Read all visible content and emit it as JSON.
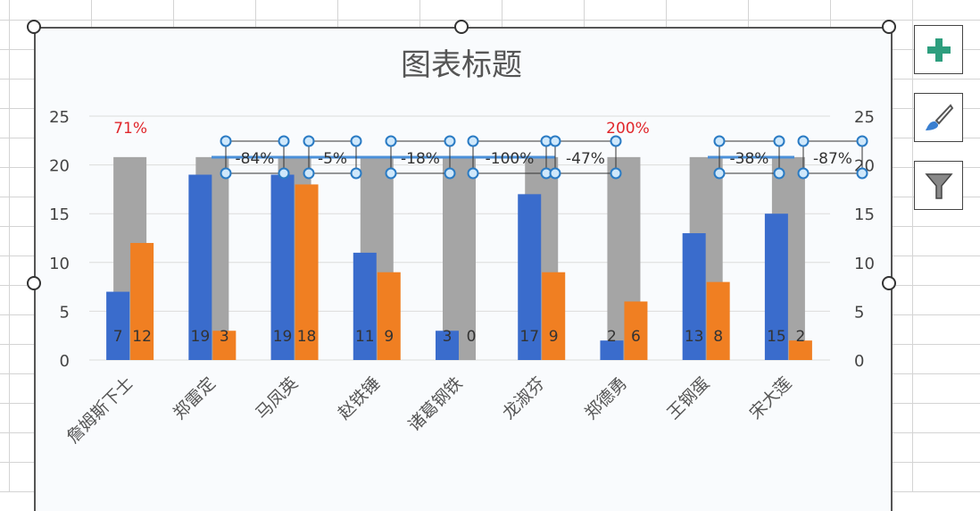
{
  "chart_data": {
    "type": "bar",
    "title": "图表标题",
    "categories": [
      "詹姆斯下士",
      "郑雷定",
      "马凤英",
      "赵铁锤",
      "诸葛钢铁",
      "龙淑芬",
      "郑德勇",
      "王钢蛋",
      "宋大莲"
    ],
    "series": [
      {
        "values": [
          7,
          19,
          19,
          11,
          3,
          17,
          2,
          13,
          15
        ],
        "color": "#3a6ccc"
      },
      {
        "values": [
          12,
          3,
          18,
          9,
          0,
          9,
          6,
          8,
          2
        ],
        "color": "#f07f22"
      },
      {
        "values": [
          20.8,
          20.8,
          20.8,
          20.8,
          20.8,
          20.8,
          20.8,
          20.8,
          20.8
        ],
        "color": "#a5a5a5"
      }
    ],
    "change_labels": [
      "71%",
      "-84%",
      "-5%",
      "-18%",
      "-100%",
      "-47%",
      "200%",
      "-38%",
      "-87%"
    ],
    "positive_label_color": "#e0262b",
    "y_ticks": [
      0,
      5,
      10,
      15,
      20,
      25
    ],
    "ylim": [
      0,
      25
    ],
    "y2_ticks": [
      0,
      5,
      10,
      15,
      20,
      25
    ],
    "grid": true
  },
  "side_buttons": {
    "add": "plus-icon",
    "style": "brush-icon",
    "filter": "filter-icon"
  }
}
